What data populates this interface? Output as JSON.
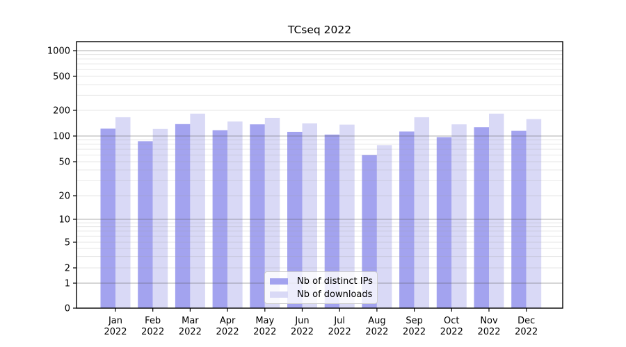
{
  "chart_data": {
    "type": "bar",
    "title": "TCseq 2022",
    "scale": "symlog",
    "grid": true,
    "legend_position": "lower center",
    "categories": [
      "Jan",
      "Feb",
      "Mar",
      "Apr",
      "May",
      "Jun",
      "Jul",
      "Aug",
      "Sep",
      "Oct",
      "Nov",
      "Dec"
    ],
    "category_year": "2022",
    "series": [
      {
        "name": "Nb of distinct IPs",
        "color": "#a3a3ef",
        "values": [
          122,
          87,
          138,
          117,
          137,
          112,
          104,
          60,
          113,
          97,
          127,
          115
        ]
      },
      {
        "name": "Nb of downloads",
        "color": "#d9d9f6",
        "values": [
          166,
          121,
          183,
          148,
          163,
          141,
          136,
          78,
          166,
          137,
          183,
          158
        ]
      }
    ],
    "yticks": [
      0,
      1,
      2,
      5,
      10,
      20,
      50,
      100,
      200,
      500,
      1000
    ],
    "ylim": [
      0,
      1400
    ],
    "xlabel": "",
    "ylabel": ""
  }
}
